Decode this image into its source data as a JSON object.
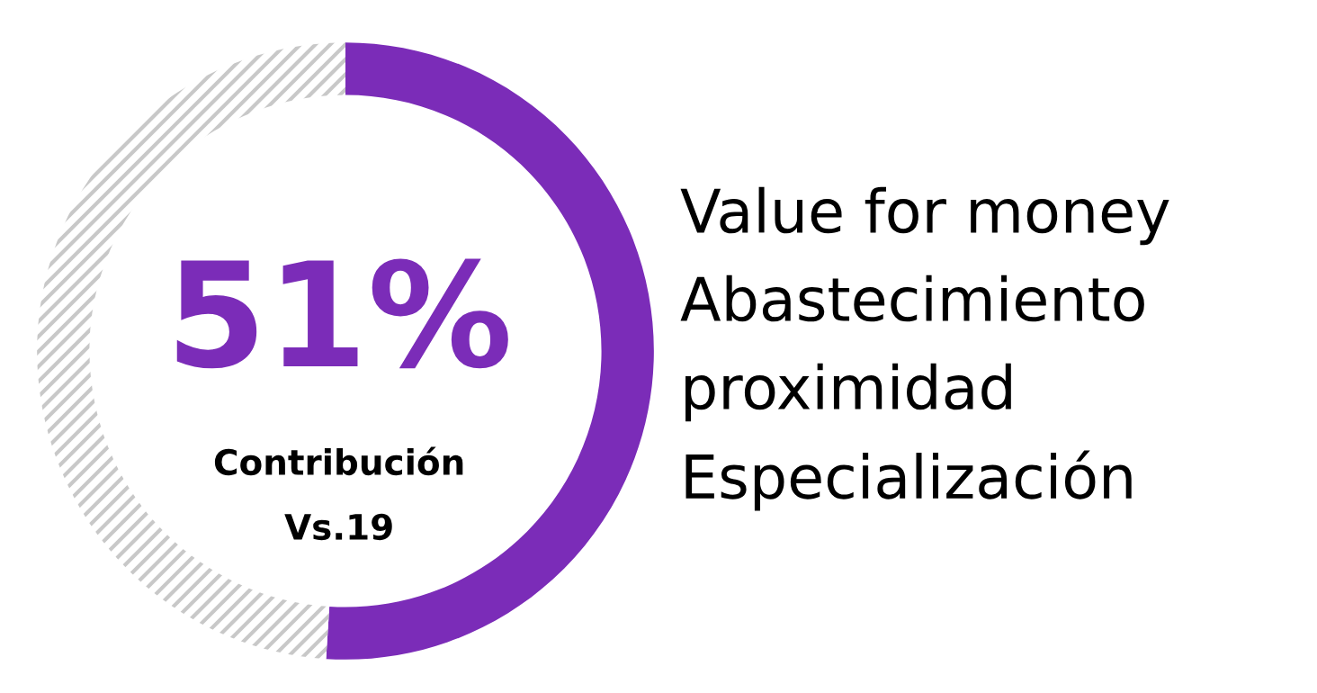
{
  "chart_data": {
    "type": "donut",
    "categories": [
      null,
      null
    ],
    "values": [
      51,
      49
    ],
    "colors": [
      "#7b2cb8",
      "#c8c8c8"
    ],
    "annotations": [
      "51%",
      "Contribución",
      "Vs.19",
      "Value for money",
      "Abastecimiento",
      "proximidad",
      "Especialización"
    ]
  }
}
